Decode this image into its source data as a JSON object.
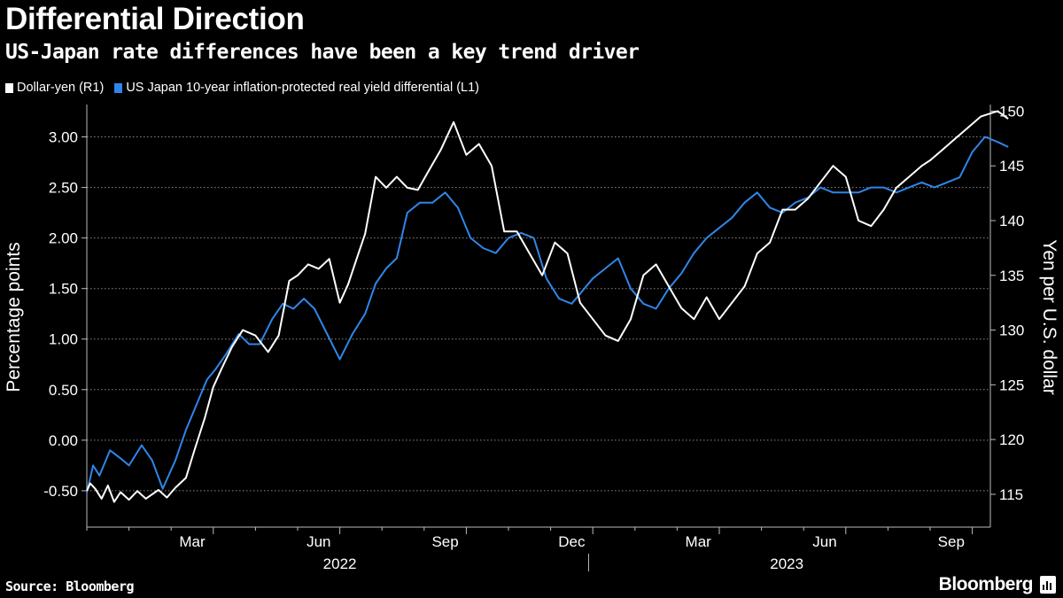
{
  "title": "Differential Direction",
  "subtitle": "US-Japan rate differences have been a key trend driver",
  "source": "Source: Bloomberg",
  "brand": "Bloomberg",
  "colors": {
    "usdjpy": "#ffffff",
    "differential": "#2f86e8",
    "grid": "#8a8a8a",
    "background": "#000000"
  },
  "chart_data": {
    "type": "line",
    "title": "Differential Direction",
    "subtitle": "US-Japan rate differences have been a key trend driver",
    "ylabel_left": "Percentage points",
    "ylabel_right": "Yen per U.S. dollar",
    "ylim_left": [
      -0.86,
      3.32
    ],
    "ylim_right": [
      112,
      150.6
    ],
    "left_ticks": [
      "3.00",
      "2.50",
      "2.00",
      "1.50",
      "1.00",
      "0.50",
      "0.00",
      "-0.50"
    ],
    "right_ticks": [
      "150",
      "145",
      "140",
      "135",
      "130",
      "125",
      "120",
      "115"
    ],
    "x_ticks": [
      "Mar",
      "Jun",
      "Sep",
      "Dec",
      "Mar",
      "Jun",
      "Sep"
    ],
    "years": [
      "2022",
      "2023"
    ],
    "grid": "horizontal dotted",
    "legend_position": "top-left",
    "series": [
      {
        "name": "Dollar-yen (R1)",
        "axis": "right",
        "x": [
          0,
          0.08,
          0.2,
          0.35,
          0.5,
          0.65,
          0.8,
          1,
          1.2,
          1.4,
          1.7,
          1.9,
          2.1,
          2.35,
          2.55,
          2.8,
          3,
          3.2,
          3.45,
          3.7,
          4,
          4.3,
          4.55,
          4.8,
          5,
          5.25,
          5.5,
          5.75,
          6,
          6.2,
          6.4,
          6.6,
          6.85,
          7.1,
          7.35,
          7.6,
          7.85,
          8.1,
          8.4,
          8.7,
          9,
          9.3,
          9.6,
          9.9,
          10.2,
          10.5,
          10.8,
          11.1,
          11.4,
          11.7,
          12,
          12.3,
          12.6,
          12.9,
          13.2,
          13.5,
          13.8,
          14.1,
          14.4,
          14.7,
          15,
          15.3,
          15.6,
          15.9,
          16.2,
          16.5,
          16.8,
          17.1,
          17.4,
          17.7,
          18,
          18.3,
          18.6,
          18.9,
          19.2,
          19.5,
          19.8,
          20,
          20.3,
          20.6,
          20.9,
          21.2,
          21.6,
          21.85
        ],
        "values": [
          115.3,
          116,
          115.5,
          114.6,
          115.8,
          114.3,
          115.2,
          114.5,
          115.3,
          114.6,
          115.4,
          114.7,
          115.6,
          116.5,
          119,
          122,
          124.8,
          126.5,
          128.5,
          130,
          129.5,
          128,
          129.5,
          134.5,
          135,
          136,
          135.6,
          136.5,
          132.5,
          134.2,
          136.5,
          138.8,
          144,
          143,
          144,
          143,
          142.8,
          144.5,
          146.5,
          149,
          146,
          147,
          145,
          139,
          139,
          137,
          135,
          138,
          137,
          132.5,
          131,
          129.5,
          129,
          131,
          135,
          136,
          134,
          132,
          131,
          133,
          131,
          132.5,
          134,
          137,
          138,
          141,
          141,
          142,
          143.5,
          145,
          144,
          140,
          139.5,
          141,
          143,
          144,
          145,
          145.5,
          146.5,
          147.5,
          148.5,
          149.5,
          150,
          149.3
        ]
      },
      {
        "name": "US Japan 10-year inflation-protected real yield differential (L1)",
        "axis": "left",
        "x": [
          0,
          0.15,
          0.3,
          0.55,
          0.8,
          1,
          1.3,
          1.55,
          1.8,
          2.1,
          2.35,
          2.6,
          2.85,
          3.05,
          3.3,
          3.6,
          3.85,
          4.1,
          4.4,
          4.65,
          4.9,
          5.15,
          5.4,
          5.7,
          6,
          6.3,
          6.6,
          6.85,
          7.1,
          7.35,
          7.6,
          7.9,
          8.2,
          8.5,
          8.8,
          9.1,
          9.4,
          9.7,
          10,
          10.3,
          10.6,
          10.9,
          11.2,
          11.5,
          11.8,
          12,
          12.3,
          12.6,
          12.9,
          13.2,
          13.5,
          13.8,
          14.1,
          14.4,
          14.7,
          15,
          15.3,
          15.6,
          15.9,
          16.2,
          16.5,
          16.8,
          17.1,
          17.4,
          17.7,
          18,
          18.3,
          18.6,
          18.9,
          19.2,
          19.5,
          19.8,
          20.1,
          20.4,
          20.7,
          21,
          21.3,
          21.6,
          21.85
        ],
        "values": [
          -0.52,
          -0.25,
          -0.35,
          -0.1,
          -0.18,
          -0.25,
          -0.05,
          -0.2,
          -0.48,
          -0.2,
          0.1,
          0.35,
          0.6,
          0.7,
          0.85,
          1.05,
          0.95,
          0.95,
          1.2,
          1.35,
          1.3,
          1.4,
          1.3,
          1.05,
          0.8,
          1.05,
          1.25,
          1.55,
          1.7,
          1.8,
          2.25,
          2.35,
          2.35,
          2.45,
          2.3,
          2.0,
          1.9,
          1.85,
          2.0,
          2.05,
          2.0,
          1.6,
          1.4,
          1.35,
          1.5,
          1.6,
          1.7,
          1.8,
          1.5,
          1.35,
          1.3,
          1.5,
          1.65,
          1.85,
          2.0,
          2.1,
          2.2,
          2.35,
          2.45,
          2.3,
          2.25,
          2.35,
          2.4,
          2.5,
          2.45,
          2.45,
          2.45,
          2.5,
          2.5,
          2.45,
          2.5,
          2.55,
          2.5,
          2.55,
          2.6,
          2.85,
          3.0,
          2.95,
          2.9
        ]
      }
    ]
  }
}
